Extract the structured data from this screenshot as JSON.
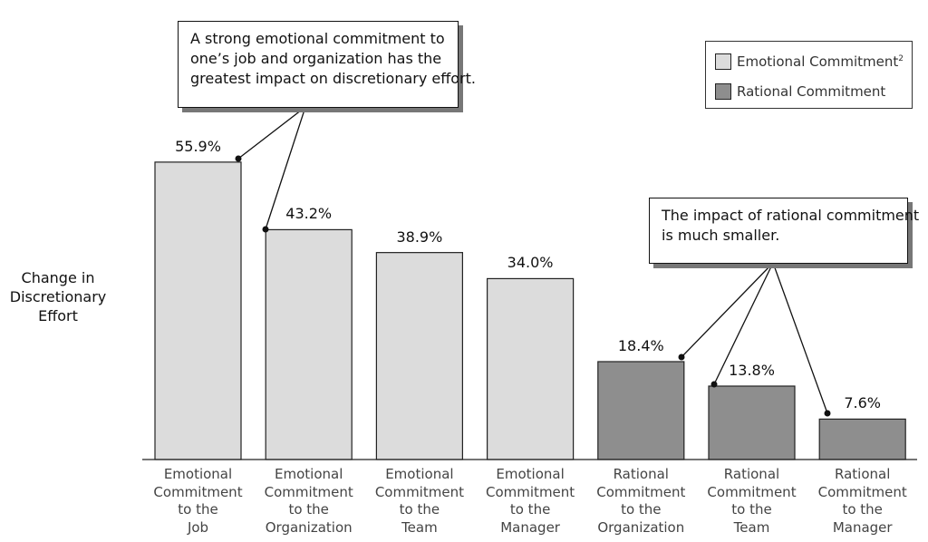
{
  "chart_data": {
    "type": "bar",
    "ylabel": [
      "Change in",
      "Discretionary",
      "Effort"
    ],
    "ylim": [
      0,
      60
    ],
    "categories": [
      [
        "Emotional",
        "Commitment",
        "to the",
        "Job"
      ],
      [
        "Emotional",
        "Commitment",
        "to the",
        "Organization"
      ],
      [
        "Emotional",
        "Commitment",
        "to  the",
        "Team"
      ],
      [
        "Emotional",
        "Commitment",
        "to the",
        "Manager"
      ],
      [
        "Rational",
        "Commitment",
        "to the",
        "Organization"
      ],
      [
        "Rational",
        "Commitment",
        "to  the",
        "Team"
      ],
      [
        "Rational",
        "Commitment",
        "to the",
        "Manager"
      ]
    ],
    "values": [
      55.9,
      43.2,
      38.9,
      34.0,
      18.4,
      13.8,
      7.6
    ],
    "value_labels": [
      "55.9%",
      "43.2%",
      "38.9%",
      "34.0%",
      "18.4%",
      "13.8%",
      "7.6%"
    ],
    "series_index": [
      0,
      0,
      0,
      0,
      1,
      1,
      1
    ],
    "legend": {
      "placement": "top-right",
      "items": [
        {
          "label": "Emotional Commitment",
          "superscript": "2",
          "color": "#dcdcdc"
        },
        {
          "label": "Rational Commitment",
          "superscript": "",
          "color": "#8e8e8e"
        }
      ]
    },
    "annotations": [
      {
        "lines": [
          "A strong emotional commitment to",
          "one’s job and organization has the",
          "greatest impact on discretionary effort."
        ],
        "targets": [
          0,
          1
        ]
      },
      {
        "lines": [
          "The impact of rational commitment",
          "is much smaller."
        ],
        "targets": [
          4,
          5,
          6
        ]
      }
    ],
    "grid": false
  },
  "colors": {
    "emotional": "#dcdcdc",
    "rational": "#8e8e8e",
    "outline": "#222222"
  }
}
